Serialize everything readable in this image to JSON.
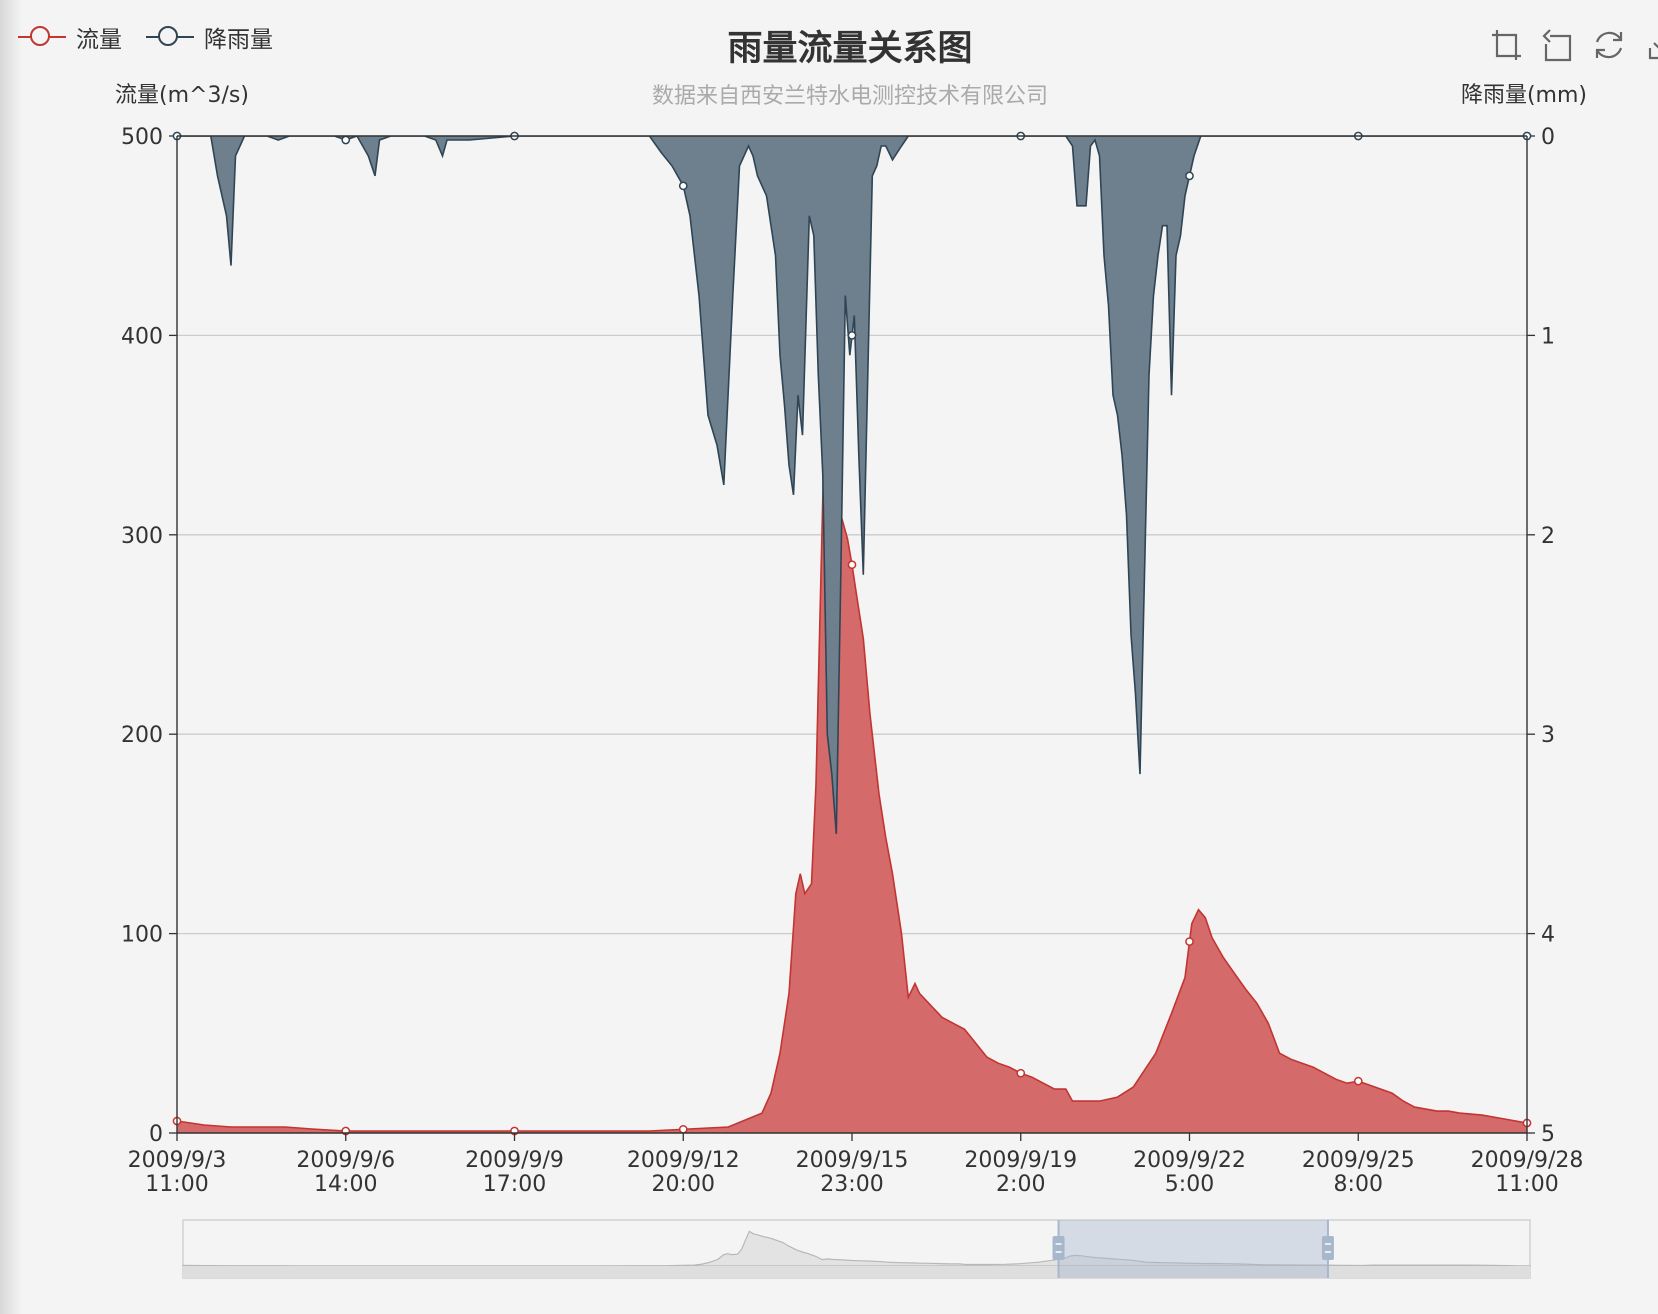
{
  "chart_data": {
    "type": "area",
    "title": "雨量流量关系图",
    "subtitle": "数据来自西安兰特水电测控技术有限公司",
    "legend": [
      "流量",
      "降雨量"
    ],
    "colors": {
      "flow": "#c23531",
      "flow_fill": "#d46a6a",
      "rain": "#2f4554",
      "rain_fill": "#6e7f8d",
      "grid": "#cccccc",
      "axis": "#333333"
    },
    "y_left": {
      "label": "流量(m^3/s)",
      "range": [
        0,
        500
      ],
      "ticks": [
        0,
        100,
        200,
        300,
        400,
        500
      ]
    },
    "y_right": {
      "label": "降雨量(mm)",
      "range": [
        0,
        5
      ],
      "inverse": true,
      "ticks": [
        0,
        1,
        2,
        3,
        4,
        5
      ]
    },
    "x_ticks": [
      [
        "2009/9/3",
        "11:00"
      ],
      [
        "2009/9/6",
        "14:00"
      ],
      [
        "2009/9/9",
        "17:00"
      ],
      [
        "2009/9/12",
        "20:00"
      ],
      [
        "2009/9/15",
        "23:00"
      ],
      [
        "2009/9/19",
        "2:00"
      ],
      [
        "2009/9/22",
        "5:00"
      ],
      [
        "2009/9/25",
        "8:00"
      ],
      [
        "2009/9/28",
        "11:00"
      ]
    ],
    "x_range_hours": [
      0,
      600
    ],
    "series": [
      {
        "name": "流量",
        "axis": "left",
        "points": [
          [
            0,
            6
          ],
          [
            6,
            5
          ],
          [
            12,
            4
          ],
          [
            24,
            3
          ],
          [
            48,
            3
          ],
          [
            60,
            2
          ],
          [
            75,
            1
          ],
          [
            90,
            1
          ],
          [
            120,
            1
          ],
          [
            150,
            1
          ],
          [
            180,
            1
          ],
          [
            210,
            1
          ],
          [
            245,
            3
          ],
          [
            260,
            10
          ],
          [
            264,
            20
          ],
          [
            268,
            40
          ],
          [
            272,
            70
          ],
          [
            275,
            120
          ],
          [
            277,
            130
          ],
          [
            279,
            120
          ],
          [
            282,
            125
          ],
          [
            284,
            175
          ],
          [
            286,
            270
          ],
          [
            288,
            365
          ],
          [
            290,
            340
          ],
          [
            292,
            330
          ],
          [
            295,
            310
          ],
          [
            298,
            298
          ],
          [
            300,
            285
          ],
          [
            302,
            270
          ],
          [
            305,
            248
          ],
          [
            308,
            210
          ],
          [
            312,
            170
          ],
          [
            315,
            148
          ],
          [
            318,
            130
          ],
          [
            322,
            100
          ],
          [
            325,
            68
          ],
          [
            328,
            75
          ],
          [
            330,
            70
          ],
          [
            335,
            64
          ],
          [
            340,
            58
          ],
          [
            345,
            55
          ],
          [
            350,
            52
          ],
          [
            355,
            45
          ],
          [
            360,
            38
          ],
          [
            365,
            35
          ],
          [
            370,
            33
          ],
          [
            375,
            30
          ],
          [
            380,
            28
          ],
          [
            385,
            25
          ],
          [
            390,
            22
          ],
          [
            395,
            22
          ],
          [
            398,
            16
          ],
          [
            402,
            16
          ],
          [
            410,
            16
          ],
          [
            418,
            18
          ],
          [
            425,
            23
          ],
          [
            435,
            40
          ],
          [
            442,
            60
          ],
          [
            448,
            78
          ],
          [
            451,
            105
          ],
          [
            454,
            112
          ],
          [
            457,
            108
          ],
          [
            460,
            98
          ],
          [
            465,
            88
          ],
          [
            470,
            80
          ],
          [
            475,
            72
          ],
          [
            480,
            65
          ],
          [
            485,
            55
          ],
          [
            490,
            40
          ],
          [
            495,
            37
          ],
          [
            500,
            35
          ],
          [
            505,
            33
          ],
          [
            510,
            30
          ],
          [
            515,
            27
          ],
          [
            520,
            25
          ],
          [
            525,
            26
          ],
          [
            530,
            24
          ],
          [
            535,
            22
          ],
          [
            540,
            20
          ],
          [
            545,
            16
          ],
          [
            550,
            13
          ],
          [
            555,
            12
          ],
          [
            560,
            11
          ],
          [
            565,
            11
          ],
          [
            570,
            10
          ],
          [
            580,
            9
          ],
          [
            590,
            7
          ],
          [
            600,
            5
          ],
          [
            605,
            10
          ],
          [
            620,
            10
          ],
          [
            640,
            9
          ],
          [
            650,
            10
          ],
          [
            660,
            8
          ],
          [
            670,
            5
          ],
          [
            680,
            2
          ],
          [
            685,
            1
          ]
        ]
      },
      {
        "name": "降雨量",
        "axis": "right",
        "points": [
          [
            0,
            0
          ],
          [
            15,
            0
          ],
          [
            18,
            0.2
          ],
          [
            20,
            0.3
          ],
          [
            22,
            0.4
          ],
          [
            24,
            0.65
          ],
          [
            26,
            0.1
          ],
          [
            28,
            0.05
          ],
          [
            30,
            0
          ],
          [
            40,
            0
          ],
          [
            45,
            0.02
          ],
          [
            50,
            0
          ],
          [
            60,
            0
          ],
          [
            70,
            0
          ],
          [
            75,
            0.02
          ],
          [
            80,
            0
          ],
          [
            85,
            0.1
          ],
          [
            88,
            0.2
          ],
          [
            90,
            0.02
          ],
          [
            95,
            0
          ],
          [
            110,
            0
          ],
          [
            115,
            0.02
          ],
          [
            118,
            0.1
          ],
          [
            120,
            0.02
          ],
          [
            130,
            0.02
          ],
          [
            150,
            0
          ],
          [
            165,
            0
          ],
          [
            175,
            0
          ],
          [
            200,
            0
          ],
          [
            210,
            0
          ],
          [
            215,
            0.08
          ],
          [
            220,
            0.15
          ],
          [
            225,
            0.25
          ],
          [
            228,
            0.4
          ],
          [
            230,
            0.6
          ],
          [
            232,
            0.8
          ],
          [
            236,
            1.4
          ],
          [
            240,
            1.55
          ],
          [
            243,
            1.75
          ],
          [
            247,
            0.8
          ],
          [
            250,
            0.15
          ],
          [
            254,
            0.05
          ],
          [
            256,
            0.1
          ],
          [
            258,
            0.2
          ],
          [
            262,
            0.3
          ],
          [
            266,
            0.6
          ],
          [
            268,
            1.1
          ],
          [
            270,
            1.35
          ],
          [
            272,
            1.65
          ],
          [
            274,
            1.8
          ],
          [
            276,
            1.3
          ],
          [
            278,
            1.5
          ],
          [
            281,
            0.4
          ],
          [
            283,
            0.5
          ],
          [
            285,
            1.2
          ],
          [
            287,
            1.7
          ],
          [
            289,
            3.0
          ],
          [
            291,
            3.2
          ],
          [
            293,
            3.5
          ],
          [
            295,
            2.2
          ],
          [
            297,
            0.8
          ],
          [
            299,
            1.1
          ],
          [
            301,
            0.9
          ],
          [
            303,
            1.6
          ],
          [
            305,
            2.2
          ],
          [
            307,
            1.2
          ],
          [
            309,
            0.2
          ],
          [
            311,
            0.15
          ],
          [
            313,
            0.05
          ],
          [
            315,
            0.05
          ],
          [
            318,
            0.12
          ],
          [
            322,
            0.05
          ],
          [
            325,
            0
          ],
          [
            350,
            0
          ],
          [
            380,
            0
          ],
          [
            395,
            0
          ],
          [
            398,
            0.05
          ],
          [
            400,
            0.35
          ],
          [
            404,
            0.35
          ],
          [
            406,
            0.05
          ],
          [
            408,
            0.02
          ],
          [
            410,
            0.1
          ],
          [
            412,
            0.6
          ],
          [
            414,
            0.85
          ],
          [
            416,
            1.3
          ],
          [
            418,
            1.4
          ],
          [
            420,
            1.6
          ],
          [
            422,
            1.9
          ],
          [
            424,
            2.5
          ],
          [
            426,
            2.8
          ],
          [
            428,
            3.2
          ],
          [
            430,
            2.2
          ],
          [
            432,
            1.2
          ],
          [
            434,
            0.8
          ],
          [
            436,
            0.6
          ],
          [
            438,
            0.45
          ],
          [
            440,
            0.45
          ],
          [
            442,
            1.3
          ],
          [
            444,
            0.6
          ],
          [
            446,
            0.5
          ],
          [
            448,
            0.3
          ],
          [
            450,
            0.2
          ],
          [
            452,
            0.1
          ],
          [
            455,
            0
          ],
          [
            480,
            0
          ],
          [
            500,
            0
          ],
          [
            540,
            0
          ],
          [
            600,
            0
          ],
          [
            650,
            0
          ],
          [
            685,
            0
          ]
        ]
      }
    ],
    "data_zoom": {
      "start_percent": 65,
      "end_percent": 85
    }
  },
  "toolbox": [
    "zoom-select",
    "zoom-back",
    "restore",
    "save-image"
  ]
}
